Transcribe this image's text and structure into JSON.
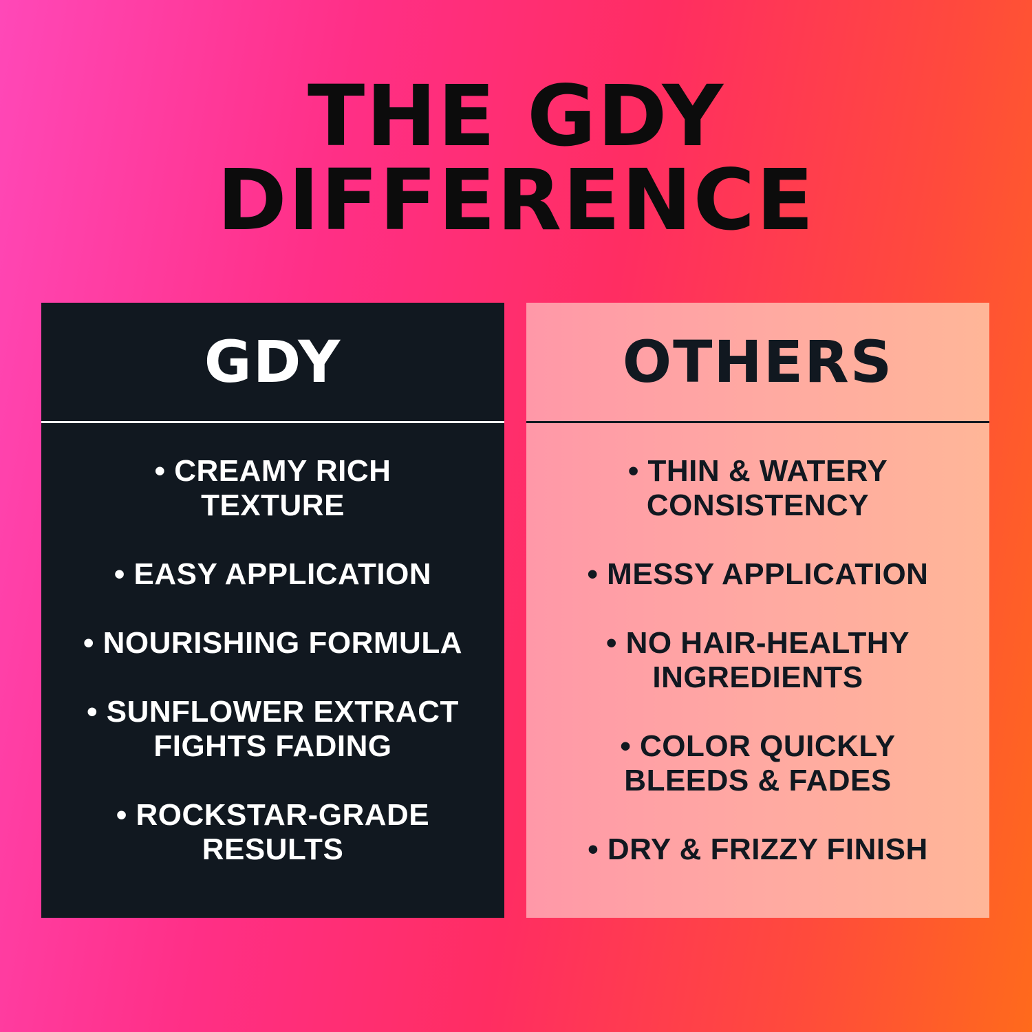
{
  "title": {
    "line1": "THE GDY",
    "line2": "DIFFERENCE"
  },
  "colors": {
    "left_panel": "#111820",
    "right_panel": "#ffa9a2",
    "background_left": "#ff48b8",
    "background_right": "#ff6a1c"
  },
  "gdy": {
    "heading": "GDY",
    "items": [
      {
        "line1": "• CREAMY RICH",
        "line2": "TEXTURE"
      },
      {
        "line1": "• EASY APPLICATION"
      },
      {
        "line1": "• NOURISHING FORMULA"
      },
      {
        "line1": "• SUNFLOWER EXTRACT",
        "line2": "FIGHTS FADING"
      },
      {
        "line1": "• ROCKSTAR-GRADE",
        "line2": "RESULTS"
      }
    ]
  },
  "others": {
    "heading": "OTHERS",
    "items": [
      {
        "line1": "• THIN & WATERY",
        "line2": "CONSISTENCY"
      },
      {
        "line1": "• MESSY APPLICATION"
      },
      {
        "line1": "• NO HAIR-HEALTHY",
        "line2": "INGREDIENTS"
      },
      {
        "line1": "• COLOR QUICKLY",
        "line2": "BLEEDS & FADES"
      },
      {
        "line1": "• DRY & FRIZZY FINISH"
      }
    ]
  }
}
